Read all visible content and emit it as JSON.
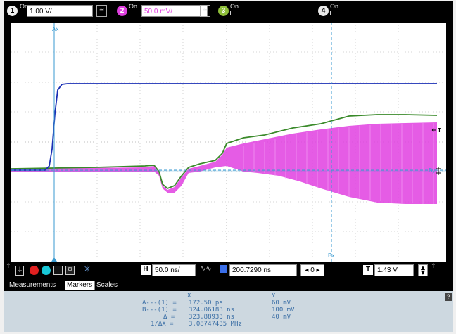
{
  "channels": [
    {
      "num": "1",
      "on": "On",
      "scale": "1.00 V/",
      "color": "#f0f0f0"
    },
    {
      "num": "2",
      "on": "On",
      "scale": "50.0 mV/",
      "color": "#e040e0"
    },
    {
      "num": "3",
      "on": "On",
      "color": "#8fbf3a"
    },
    {
      "num": "4",
      "on": "On",
      "color": "#e8e8e8"
    }
  ],
  "markers": {
    "ax": "Ax",
    "bx": "Bx",
    "by": "By",
    "trigger": "T"
  },
  "controls": {
    "h_label": "H",
    "timebase": "50.0 ns/",
    "delay": "200.7290 ns",
    "delay_nav": "0",
    "t_label": "T",
    "trigger_level": "1.43 V"
  },
  "tabs": {
    "measurements": "Measurements",
    "markers": "Markers",
    "scales": "Scales"
  },
  "readout": {
    "x_header": "X",
    "y_header": "Y",
    "rows": [
      {
        "label": "A---(1) =",
        "x": "172.50 ps",
        "y": "60 mV"
      },
      {
        "label": "B---(1) =",
        "x": "324.06183 ns",
        "y": "100 mV"
      },
      {
        "label": "Δ =",
        "x": "323.88933 ns",
        "y": "40 mV"
      },
      {
        "label": "1/ΔX =",
        "x": "3.08747435 MHz",
        "y": ""
      }
    ],
    "help": "?"
  },
  "trace_colors": {
    "ch1": "#1a2fb5",
    "ch2": "#e040e0",
    "ch3": "#3a8a2a",
    "markers": "#3a9ad0"
  }
}
